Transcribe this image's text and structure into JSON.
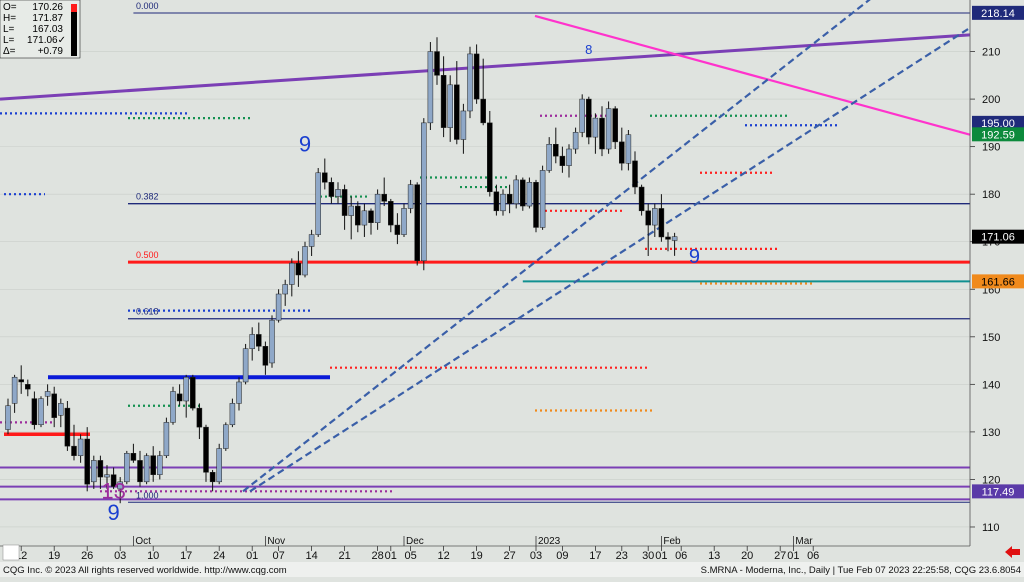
{
  "ohlc_box": [
    {
      "label": "O=",
      "value": "170.26"
    },
    {
      "label": "H=",
      "value": "171.87"
    },
    {
      "label": "L=",
      "value": "167.03"
    },
    {
      "label": "L=",
      "value": "171.06✓"
    },
    {
      "label": "Δ=",
      "value": "+0.79"
    }
  ],
  "footer": {
    "left": "CQG Inc. © 2023 All rights reserved worldwide. http://www.cqg.com",
    "right": "S.MRNA - Moderna, Inc., Daily | Tue Feb 07 2023 22:25:58, CQG 23.6.8054"
  },
  "colors": {
    "bg": "#dfe3df",
    "up": "#8fa8c8",
    "down": "#000000",
    "fib": "#1f2a7a",
    "red": "#ff1a1a",
    "teal": "#109090",
    "magenta": "#ff33cc",
    "purple": "#7b3fb5",
    "blue_trend": "#3a5fa8"
  },
  "chart_data": {
    "type": "candlestick",
    "title": "S.MRNA - Moderna, Inc., Daily",
    "ylim": [
      106,
      220
    ],
    "yticks": [
      110,
      120,
      130,
      140,
      150,
      160,
      170,
      180,
      190,
      200,
      210
    ],
    "x_axis": {
      "ticks": [
        {
          "label": "12",
          "i": 2
        },
        {
          "label": "19",
          "i": 7
        },
        {
          "label": "26",
          "i": 12
        },
        {
          "label": "03",
          "i": 17
        },
        {
          "label": "10",
          "i": 22
        },
        {
          "label": "17",
          "i": 27
        },
        {
          "label": "24",
          "i": 32
        },
        {
          "label": "01",
          "i": 37
        },
        {
          "label": "07",
          "i": 41
        },
        {
          "label": "14",
          "i": 46
        },
        {
          "label": "21",
          "i": 51
        },
        {
          "label": "28",
          "i": 56
        },
        {
          "label": "01",
          "i": 58
        },
        {
          "label": "05",
          "i": 61
        },
        {
          "label": "12",
          "i": 66
        },
        {
          "label": "19",
          "i": 71
        },
        {
          "label": "27",
          "i": 76
        },
        {
          "label": "03",
          "i": 80
        },
        {
          "label": "09",
          "i": 84
        },
        {
          "label": "17",
          "i": 89
        },
        {
          "label": "23",
          "i": 93
        },
        {
          "label": "30",
          "i": 97
        },
        {
          "label": "01",
          "i": 99
        },
        {
          "label": "06",
          "i": 102
        },
        {
          "label": "13",
          "i": 107
        },
        {
          "label": "20",
          "i": 112
        },
        {
          "label": "27",
          "i": 117
        },
        {
          "label": "01",
          "i": 119
        },
        {
          "label": "06",
          "i": 122
        }
      ],
      "months": [
        {
          "label": "Oct",
          "i": 19
        },
        {
          "label": "Nov",
          "i": 39
        },
        {
          "label": "Dec",
          "i": 60
        },
        {
          "label": "2023",
          "i": 80
        },
        {
          "label": "Feb",
          "i": 99
        },
        {
          "label": "Mar",
          "i": 119
        }
      ]
    },
    "candles": [
      [
        130.5,
        137.0,
        129.5,
        135.5
      ],
      [
        136.0,
        142.0,
        134.0,
        141.5
      ],
      [
        141.0,
        144.0,
        138.0,
        140.5
      ],
      [
        140.0,
        141.0,
        137.5,
        139.0
      ],
      [
        137.0,
        138.5,
        130.5,
        131.5
      ],
      [
        131.5,
        137.5,
        131.0,
        137.0
      ],
      [
        137.5,
        140.0,
        135.5,
        138.5
      ],
      [
        138.0,
        139.5,
        131.0,
        133.0
      ],
      [
        133.5,
        137.0,
        131.0,
        136.0
      ],
      [
        135.0,
        136.5,
        126.0,
        127.0
      ],
      [
        127.0,
        131.5,
        124.0,
        125.0
      ],
      [
        125.0,
        129.5,
        123.5,
        128.5
      ],
      [
        128.5,
        131.0,
        117.5,
        119.0
      ],
      [
        119.5,
        125.0,
        118.0,
        124.0
      ],
      [
        124.0,
        125.0,
        118.0,
        120.5
      ],
      [
        120.5,
        123.0,
        118.0,
        121.0
      ],
      [
        121.0,
        122.5,
        118.0,
        118.5
      ],
      [
        118.0,
        120.5,
        115.0,
        119.5
      ],
      [
        119.5,
        126.0,
        119.0,
        125.5
      ],
      [
        125.5,
        127.5,
        123.5,
        124.0
      ],
      [
        124.0,
        126.0,
        118.5,
        119.5
      ],
      [
        119.5,
        125.5,
        119.0,
        125.0
      ],
      [
        125.0,
        127.0,
        119.5,
        121.0
      ],
      [
        121.0,
        126.0,
        120.0,
        125.0
      ],
      [
        125.0,
        133.0,
        124.5,
        132.0
      ],
      [
        132.0,
        139.5,
        131.5,
        138.5
      ],
      [
        138.0,
        140.0,
        135.5,
        136.5
      ],
      [
        136.5,
        142.0,
        133.0,
        141.5
      ],
      [
        141.5,
        142.0,
        134.5,
        135.0
      ],
      [
        135.0,
        136.0,
        128.5,
        131.0
      ],
      [
        131.0,
        131.5,
        119.5,
        121.5
      ],
      [
        121.5,
        122.0,
        117.5,
        119.5
      ],
      [
        119.5,
        127.5,
        119.0,
        126.5
      ],
      [
        126.5,
        132.0,
        126.0,
        131.5
      ],
      [
        131.5,
        137.0,
        131.0,
        136.0
      ],
      [
        136.0,
        141.5,
        134.5,
        140.5
      ],
      [
        140.5,
        148.5,
        140.0,
        147.5
      ],
      [
        147.5,
        152.0,
        145.0,
        150.5
      ],
      [
        150.5,
        153.0,
        147.0,
        148.0
      ],
      [
        148.0,
        149.0,
        142.0,
        144.0
      ],
      [
        144.5,
        154.5,
        143.5,
        153.5
      ],
      [
        153.5,
        160.0,
        153.0,
        159.0
      ],
      [
        159.0,
        162.0,
        156.5,
        161.0
      ],
      [
        161.0,
        166.5,
        158.5,
        165.5
      ],
      [
        165.5,
        168.0,
        160.5,
        163.0
      ],
      [
        163.0,
        170.0,
        162.5,
        169.0
      ],
      [
        169.0,
        172.5,
        167.0,
        171.5
      ],
      [
        171.5,
        185.5,
        171.0,
        184.5
      ],
      [
        184.5,
        187.5,
        181.0,
        182.5
      ],
      [
        182.5,
        183.5,
        178.0,
        179.5
      ],
      [
        179.5,
        182.5,
        178.0,
        181.0
      ],
      [
        181.0,
        182.0,
        172.5,
        175.5
      ],
      [
        175.5,
        179.5,
        170.5,
        177.5
      ],
      [
        177.5,
        178.5,
        172.0,
        173.5
      ],
      [
        173.5,
        178.0,
        171.0,
        176.5
      ],
      [
        176.5,
        177.0,
        171.5,
        174.0
      ],
      [
        174.0,
        181.0,
        172.5,
        180.0
      ],
      [
        180.0,
        183.5,
        177.5,
        178.5
      ],
      [
        178.5,
        179.0,
        172.0,
        173.5
      ],
      [
        173.5,
        176.0,
        169.5,
        171.5
      ],
      [
        171.5,
        178.0,
        171.0,
        177.0
      ],
      [
        177.0,
        183.0,
        176.0,
        182.0
      ],
      [
        182.0,
        182.5,
        165.0,
        166.0
      ],
      [
        166.0,
        196.0,
        164.0,
        195.0
      ],
      [
        195.0,
        212.0,
        193.5,
        210.0
      ],
      [
        210.0,
        213.0,
        203.0,
        205.0
      ],
      [
        205.0,
        209.0,
        192.0,
        194.0
      ],
      [
        194.0,
        205.0,
        191.0,
        203.0
      ],
      [
        203.0,
        208.0,
        190.5,
        191.5
      ],
      [
        191.5,
        199.0,
        188.5,
        197.5
      ],
      [
        197.5,
        211.0,
        196.0,
        209.5
      ],
      [
        209.5,
        211.5,
        199.0,
        200.0
      ],
      [
        200.0,
        208.5,
        194.5,
        195.0
      ],
      [
        195.0,
        197.5,
        179.5,
        180.5
      ],
      [
        180.5,
        182.0,
        175.5,
        176.5
      ],
      [
        176.5,
        181.0,
        175.5,
        180.0
      ],
      [
        180.0,
        182.0,
        176.0,
        178.0
      ],
      [
        178.0,
        184.0,
        177.0,
        183.0
      ],
      [
        183.0,
        183.5,
        176.5,
        177.5
      ],
      [
        177.5,
        183.5,
        177.0,
        182.5
      ],
      [
        182.5,
        183.0,
        172.0,
        173.0
      ],
      [
        173.0,
        186.0,
        172.5,
        185.0
      ],
      [
        185.0,
        192.0,
        184.5,
        190.5
      ],
      [
        190.5,
        194.0,
        186.5,
        188.0
      ],
      [
        188.0,
        190.0,
        184.5,
        186.0
      ],
      [
        186.0,
        190.5,
        183.5,
        189.5
      ],
      [
        189.5,
        194.0,
        188.5,
        193.0
      ],
      [
        193.0,
        201.0,
        192.0,
        200.0
      ],
      [
        200.0,
        200.5,
        190.5,
        192.0
      ],
      [
        192.0,
        197.0,
        188.5,
        196.0
      ],
      [
        196.0,
        198.5,
        188.0,
        189.5
      ],
      [
        189.5,
        199.5,
        188.5,
        198.0
      ],
      [
        198.0,
        198.5,
        189.5,
        191.0
      ],
      [
        191.0,
        194.0,
        185.0,
        186.5
      ],
      [
        186.5,
        193.5,
        185.0,
        192.5
      ],
      [
        187.0,
        189.0,
        180.0,
        181.5
      ],
      [
        181.5,
        182.0,
        175.5,
        176.5
      ],
      [
        176.5,
        178.0,
        167.0,
        173.5
      ],
      [
        173.5,
        178.0,
        171.0,
        177.0
      ],
      [
        177.0,
        180.0,
        170.0,
        171.0
      ],
      [
        171.0,
        172.0,
        168.0,
        170.5
      ],
      [
        170.26,
        171.87,
        167.03,
        171.06
      ]
    ],
    "levels": [
      {
        "name": "fib-0",
        "label": "0.000",
        "price": 218.1,
        "color": "#1f2a7a",
        "w": 1
      },
      {
        "name": "fib-382",
        "label": "0.382",
        "price": 178.0,
        "color": "#1f2a7a",
        "w": 1.3
      },
      {
        "name": "fib-500",
        "label": "0.500",
        "price": 165.7,
        "color": "#ff1a1a",
        "w": 3
      },
      {
        "name": "fib-618",
        "label": "0.618",
        "price": 153.8,
        "color": "#1f2a7a",
        "w": 1.3
      },
      {
        "name": "fib-1000",
        "label": "1.000",
        "price": 115.2,
        "color": "#1f2a7a",
        "w": 1
      }
    ],
    "price_tags": [
      {
        "text": "218.14",
        "price": 218.14,
        "bg": "#1f2a7a",
        "fg": "#ffffff"
      },
      {
        "text": "195.00",
        "price": 195.0,
        "bg": "#1f2a7a",
        "fg": "#ffffff"
      },
      {
        "text": "192.59",
        "price": 192.59,
        "bg": "#0c8a3c",
        "fg": "#ffffff"
      },
      {
        "text": "171.06",
        "price": 171.06,
        "bg": "#000000",
        "fg": "#ffffff"
      },
      {
        "text": "161.66",
        "price": 161.66,
        "bg": "#f08a1c",
        "fg": "#000000"
      },
      {
        "text": "117.49",
        "price": 117.49,
        "bg": "#5a3aa8",
        "fg": "#ffffff"
      }
    ],
    "counts": [
      {
        "t": "9",
        "i": 7,
        "p": 209.5,
        "c": "#1a3fd0",
        "s": 22
      },
      {
        "t": "9",
        "i": 45,
        "p": 189.0,
        "c": "#1a3fd0",
        "s": 22
      },
      {
        "t": "9",
        "i": 16,
        "p": 111.5,
        "c": "#1a3fd0",
        "s": 22
      },
      {
        "t": "9",
        "i": 104,
        "p": 165.5,
        "c": "#1a3fd0",
        "s": 20
      },
      {
        "t": "13",
        "i": 16,
        "p": 116.0,
        "c": "#9c2c9c",
        "s": 22
      },
      {
        "t": "8",
        "i": 88,
        "p": 209.5,
        "c": "#1a3fd0",
        "s": 13
      }
    ]
  }
}
